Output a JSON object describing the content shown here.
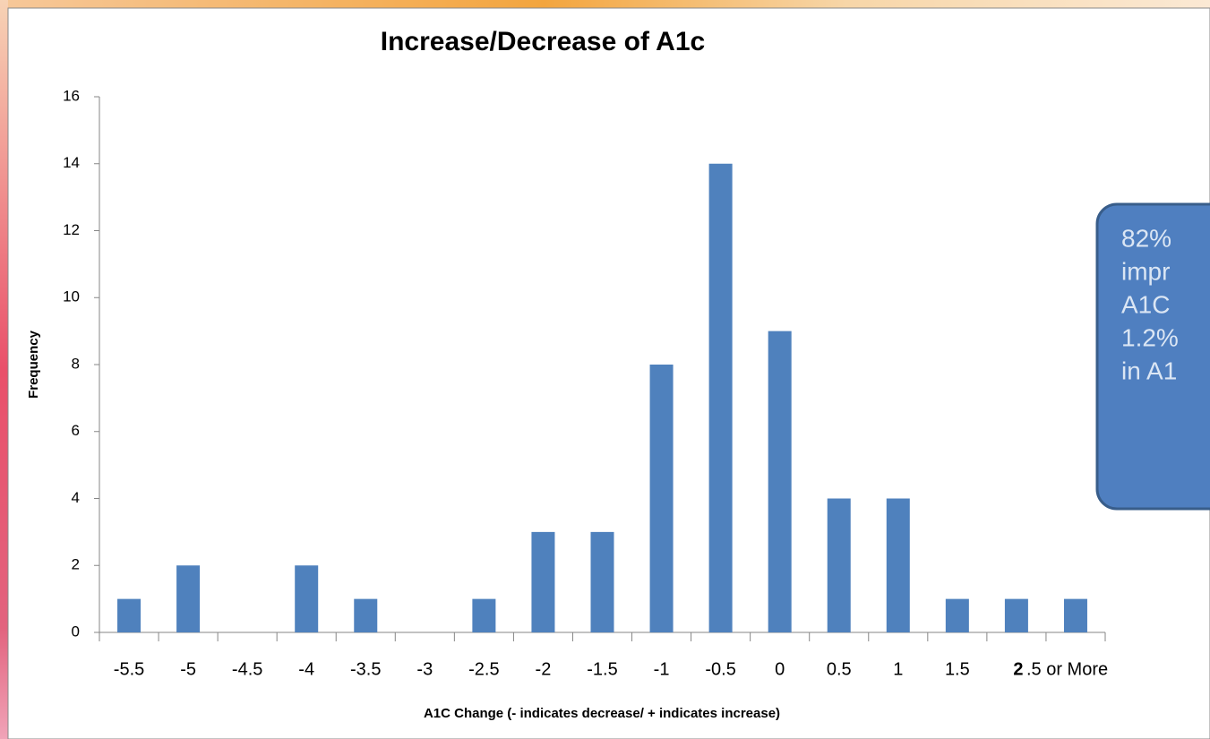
{
  "chart_data": {
    "type": "bar",
    "title": "Increase/Decrease of A1c",
    "xlabel": "A1C Change (- indicates decrease/ + indicates increase)",
    "ylabel": "Frequency",
    "categories": [
      "-5.5",
      "-5",
      "-4.5",
      "-4",
      "-3.5",
      "-3",
      "-2.5",
      "-2",
      "-1.5",
      "-1",
      "-0.5",
      "0",
      "0.5",
      "1",
      "1.5",
      "2",
      ".5 or More"
    ],
    "values": [
      1,
      2,
      0,
      2,
      1,
      0,
      1,
      3,
      3,
      8,
      14,
      9,
      4,
      4,
      1,
      1,
      1
    ],
    "color": "#4f81bd",
    "ylim": [
      0,
      16
    ],
    "yticks": [
      0,
      2,
      4,
      6,
      8,
      10,
      12,
      14,
      16
    ],
    "grid": false,
    "annotation": [
      "82%",
      "impr",
      "A1C",
      "1.2%",
      "in A1"
    ]
  }
}
